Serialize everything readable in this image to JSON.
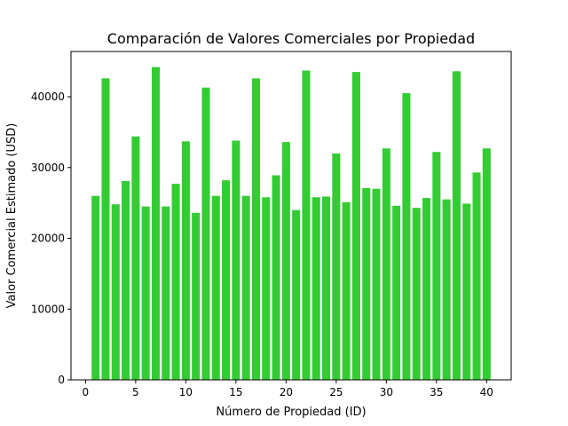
{
  "chart_data": {
    "type": "bar",
    "title": "Comparación de Valores Comerciales por Propiedad",
    "xlabel": "Número de Propiedad (ID)",
    "ylabel": "Valor Comercial Estimado (USD)",
    "xlim": [
      -1.45,
      42.45
    ],
    "ylim": [
      0,
      46400
    ],
    "xticks": [
      0,
      5,
      10,
      15,
      20,
      25,
      30,
      35,
      40
    ],
    "yticks": [
      0,
      10000,
      20000,
      30000,
      40000
    ],
    "bar_color": "#33cc33",
    "grid": false,
    "legend": "none",
    "x": [
      1,
      2,
      3,
      4,
      5,
      6,
      7,
      8,
      9,
      10,
      11,
      12,
      13,
      14,
      15,
      16,
      17,
      18,
      19,
      20,
      21,
      22,
      23,
      24,
      25,
      26,
      27,
      28,
      29,
      30,
      31,
      32,
      33,
      34,
      35,
      36,
      37,
      38,
      39,
      40
    ],
    "values": [
      26000,
      42600,
      24800,
      28100,
      34400,
      24500,
      44200,
      24500,
      27700,
      33700,
      23600,
      41300,
      26000,
      28200,
      33800,
      26000,
      42600,
      25800,
      28900,
      33600,
      24000,
      43700,
      25800,
      25900,
      32000,
      25100,
      43500,
      27100,
      27000,
      32700,
      24600,
      40500,
      24300,
      25700,
      32200,
      25500,
      43600,
      24900,
      29300,
      32700
    ]
  }
}
